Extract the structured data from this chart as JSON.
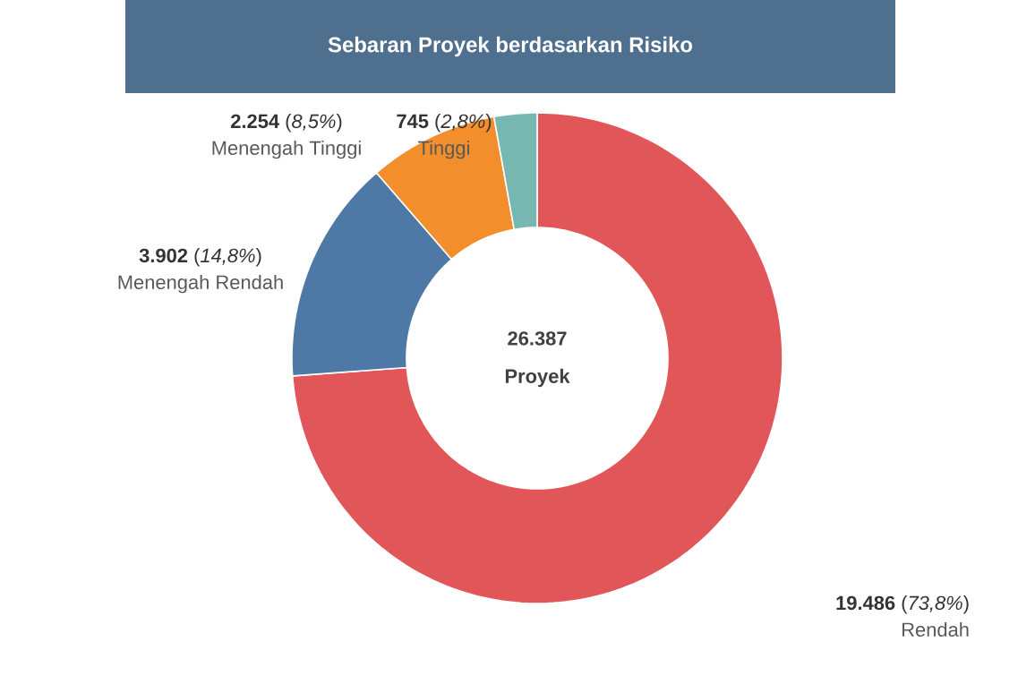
{
  "chart_data": {
    "type": "donut",
    "title": "Sebaran Proyek berdasarkan Risiko",
    "categories": [
      "Rendah",
      "Menengah Rendah",
      "Menengah Tinggi",
      "Tinggi"
    ],
    "values": [
      19486,
      3902,
      2254,
      745
    ],
    "colors": [
      "#e15759",
      "#4e79a7",
      "#f28e2b",
      "#76b7b2"
    ],
    "value_labels": [
      "**19.486** (*73,8%*)",
      "**3.902** (*14,8%*)",
      "**2.254** (*8,5%*)",
      "**745** (*2,8%*)"
    ],
    "annotations": [
      "26.387",
      "Proyek"
    ]
  }
}
